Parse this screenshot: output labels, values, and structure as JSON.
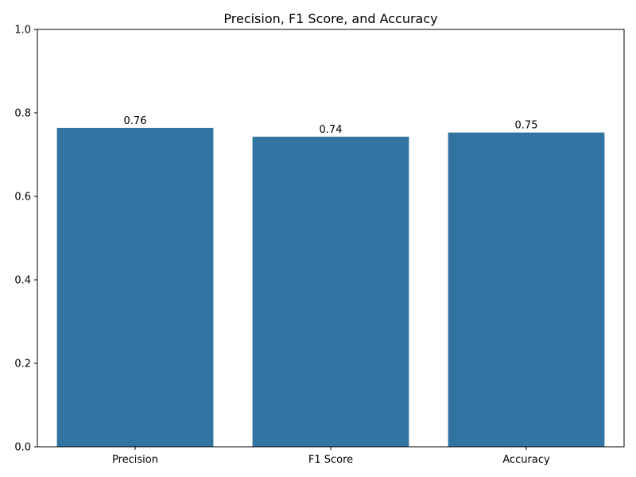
{
  "chart_data": {
    "type": "bar",
    "title": "Precision, F1 Score, and Accuracy",
    "categories": [
      "Precision",
      "F1 Score",
      "Accuracy"
    ],
    "values": [
      0.764,
      0.743,
      0.753
    ],
    "data_labels": [
      "0.76",
      "0.74",
      "0.75"
    ],
    "ylim": [
      0,
      1.0
    ],
    "yticks": [
      0.0,
      0.2,
      0.4,
      0.6,
      0.8,
      1.0
    ],
    "ytick_labels": [
      "0.0",
      "0.2",
      "0.4",
      "0.6",
      "0.8",
      "1.0"
    ],
    "xlabel": "",
    "ylabel": "",
    "grid": false,
    "bar_color": "#3274a1"
  }
}
